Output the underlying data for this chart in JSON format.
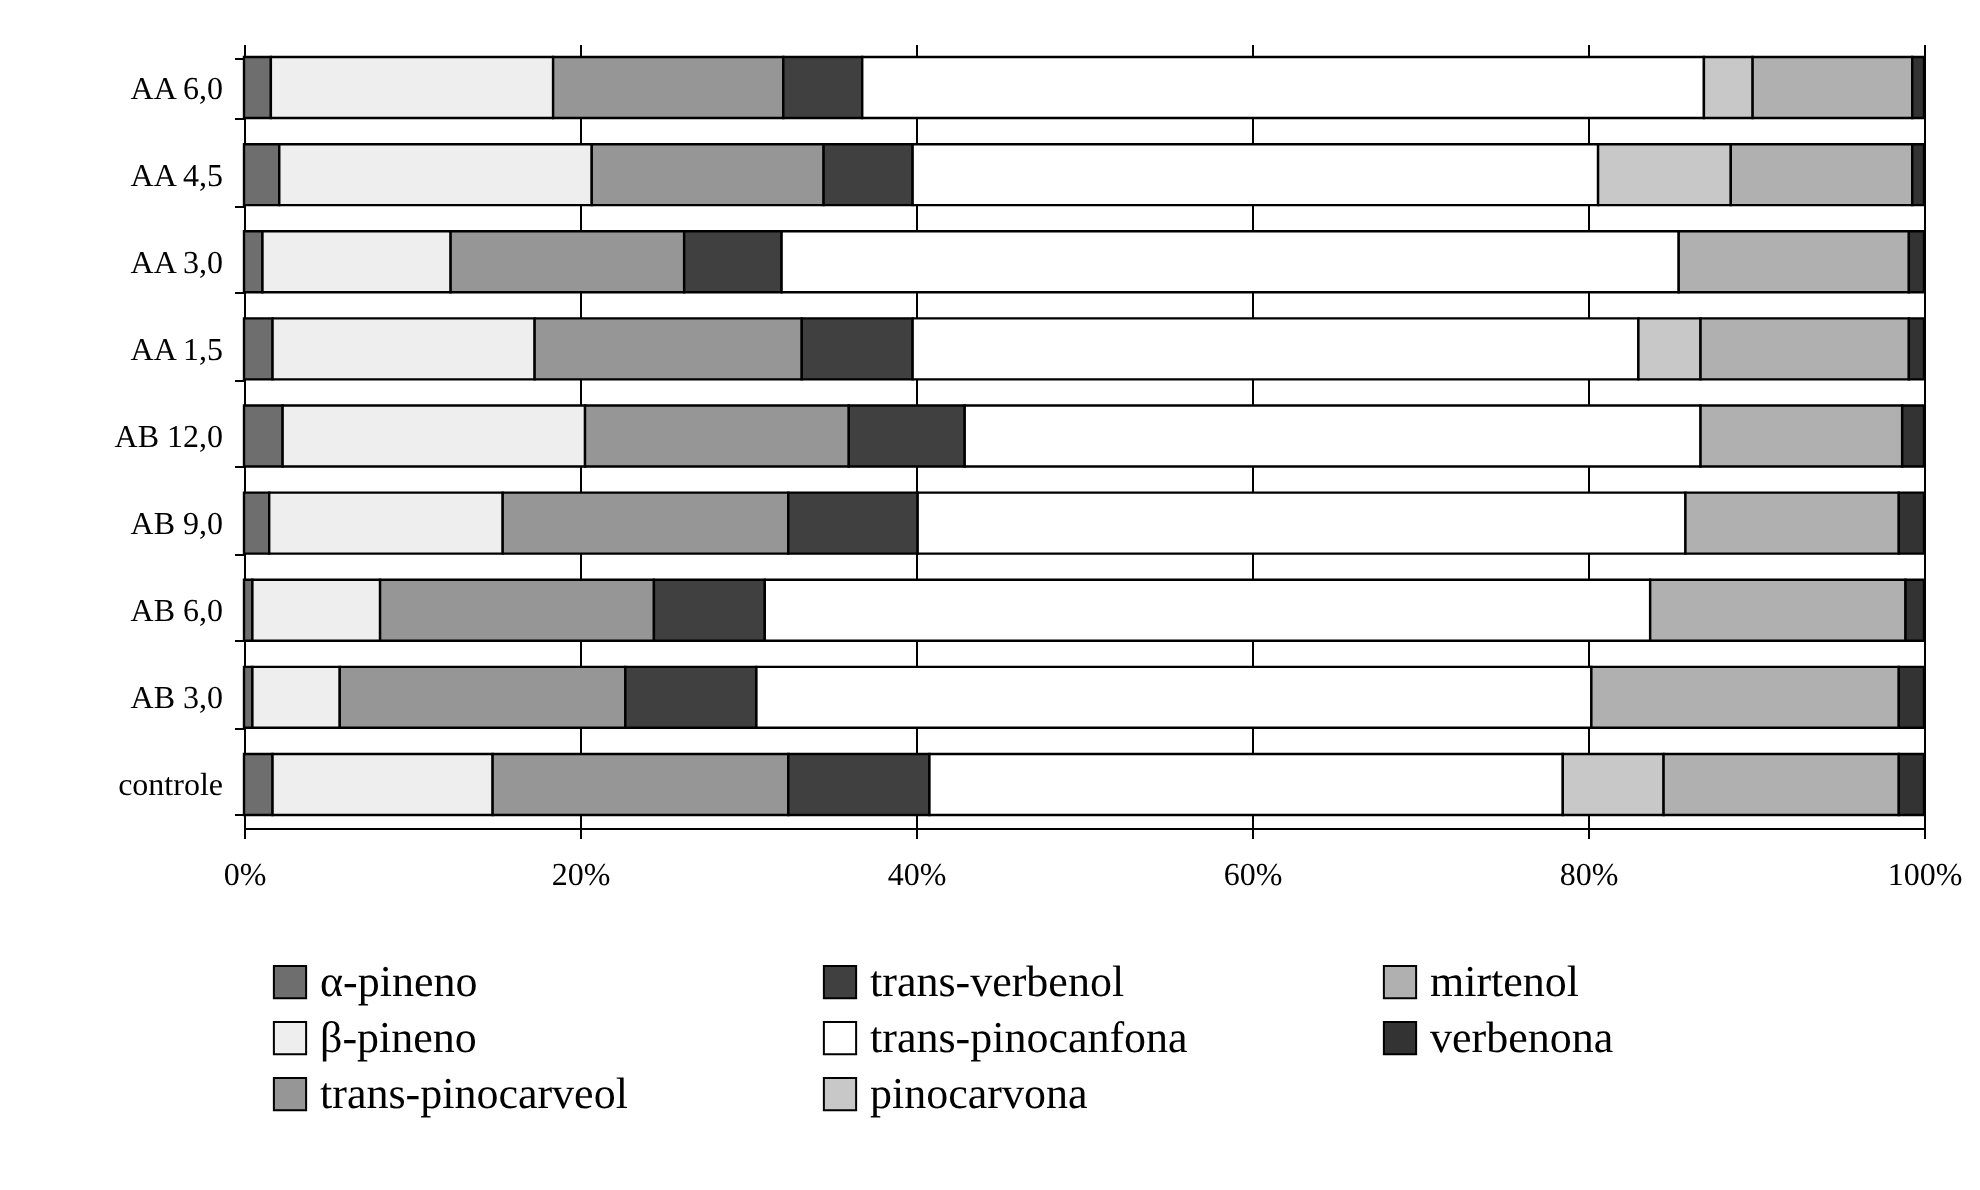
{
  "chart_data": {
    "type": "bar",
    "orientation": "horizontal",
    "stacked": true,
    "categories": [
      "AA 6,0",
      "AA 4,5",
      "AA 3,0",
      "AA 1,5",
      "AB 12,0",
      "AB 9,0",
      "AB 6,0",
      "AB 3,0",
      "controle"
    ],
    "series": [
      {
        "name": "α-pineno",
        "color": "#6e6e6e",
        "values": [
          1.6,
          2.1,
          1.1,
          1.7,
          2.3,
          1.5,
          0.5,
          0.5,
          1.7
        ]
      },
      {
        "name": "β-pineno",
        "color": "#eeeeee",
        "values": [
          16.8,
          18.6,
          11.2,
          15.6,
          18.0,
          13.9,
          7.6,
          5.2,
          13.1
        ]
      },
      {
        "name": "trans-pinocarveol",
        "color": "#969696",
        "values": [
          13.7,
          13.8,
          13.9,
          15.9,
          15.7,
          17.0,
          16.3,
          17.0,
          17.6
        ]
      },
      {
        "name": "trans-verbenol",
        "color": "#404040",
        "values": [
          4.7,
          5.3,
          5.8,
          6.6,
          6.9,
          7.7,
          6.6,
          7.8,
          8.4
        ]
      },
      {
        "name": "trans-pinocanfona",
        "color": "#ffffff",
        "values": [
          50.1,
          40.8,
          53.4,
          43.2,
          43.8,
          45.7,
          52.7,
          49.7,
          37.7
        ]
      },
      {
        "name": "pinocarvona",
        "color": "#c8c8c8",
        "values": [
          2.9,
          7.9,
          null,
          3.7,
          null,
          null,
          null,
          null,
          6.0
        ]
      },
      {
        "name": "mirtenol",
        "color": "#b0b0b0",
        "values": [
          9.5,
          10.8,
          13.7,
          12.4,
          12.0,
          12.7,
          15.2,
          18.3,
          14.0
        ]
      },
      {
        "name": "verbenona",
        "color": "#333333",
        "values": [
          0.7,
          0.7,
          0.9,
          0.9,
          1.3,
          1.5,
          1.1,
          1.5,
          1.5
        ]
      }
    ],
    "xlim": [
      0,
      100
    ],
    "xticks": [
      {
        "value": 0,
        "label": "0%"
      },
      {
        "value": 20,
        "label": "20%"
      },
      {
        "value": 40,
        "label": "40%"
      },
      {
        "value": 60,
        "label": "60%"
      },
      {
        "value": 80,
        "label": "80%"
      },
      {
        "value": 100,
        "label": "100%"
      }
    ],
    "grid": "x",
    "legend": "bottom"
  }
}
